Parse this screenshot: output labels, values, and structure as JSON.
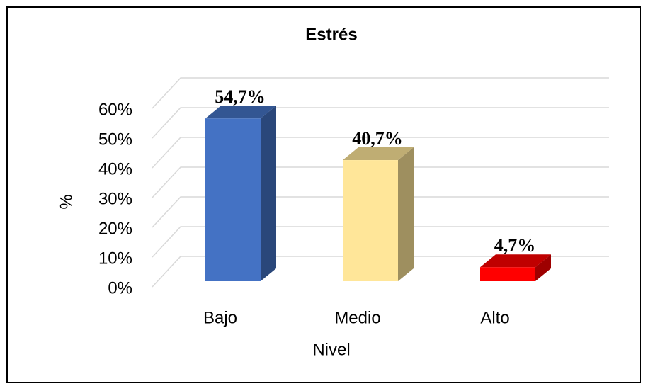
{
  "chart_data": {
    "type": "bar3d",
    "title": "Estrés",
    "x_label": "Nivel",
    "y_label": "%",
    "categories": [
      "Bajo",
      "Medio",
      "Alto"
    ],
    "values": [
      54.7,
      40.7,
      4.7
    ],
    "value_labels": [
      "54,7%",
      "40,7%",
      "4,7%"
    ],
    "colors": [
      "#4472c4",
      "#ffe699",
      "#ff0000"
    ],
    "ylim": [
      0,
      60
    ],
    "yticks": [
      {
        "value": 0,
        "label": "0%"
      },
      {
        "value": 10,
        "label": "10%"
      },
      {
        "value": 20,
        "label": "20%"
      },
      {
        "value": 30,
        "label": "30%"
      },
      {
        "value": 40,
        "label": "40%"
      },
      {
        "value": 50,
        "label": "50%"
      },
      {
        "value": 60,
        "label": "60%"
      }
    ],
    "grid": true
  }
}
